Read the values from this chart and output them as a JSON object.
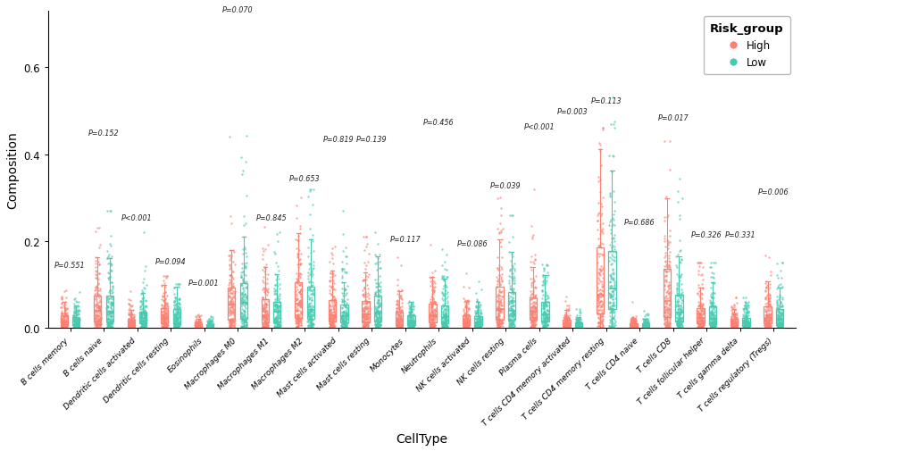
{
  "cell_types": [
    "B cells memory",
    "B cells naive",
    "Dendritic cells activated",
    "Dendritic cells resting",
    "Eosinophils",
    "Macrophages M0",
    "Macrophages M1",
    "Macrophages M2",
    "Mast cells activated",
    "Mast cells resting",
    "Monocytes",
    "Neutrophils",
    "NK cells activated",
    "NK cells resting",
    "Plasma cells",
    "T cells CD4 memory activated",
    "T cells CD4 memory resting",
    "T cells CD4 naive",
    "T cells CD8",
    "T cells follicular helper",
    "T cells gamma delta",
    "T cells regulatory (Tregs)"
  ],
  "p_values": [
    "P=0.551",
    "P=0.152",
    "P<0.001",
    "P=0.094",
    "P=0.001",
    "P=0.070",
    "P=0.845",
    "P=0.653",
    "P=0.819",
    "P=0.139",
    "P=0.117",
    "P=0.456",
    "P=0.086",
    "P=0.039",
    "P<0.001",
    "P=0.003",
    "P=0.113",
    "P=0.686",
    "P=0.017",
    "P=0.326",
    "P=0.331",
    "P=0.006"
  ],
  "high_color": "#FA8072",
  "low_color": "#48C9B0",
  "background_color": "#FFFFFF",
  "ylabel": "Composition",
  "xlabel": "CellType",
  "legend_title": "Risk_group",
  "legend_high": "High",
  "legend_low": "Low",
  "ylim": [
    0,
    0.73
  ],
  "yticks": [
    0.0,
    0.2,
    0.4,
    0.6
  ],
  "seed": 42,
  "n_high": 160,
  "n_low": 160
}
